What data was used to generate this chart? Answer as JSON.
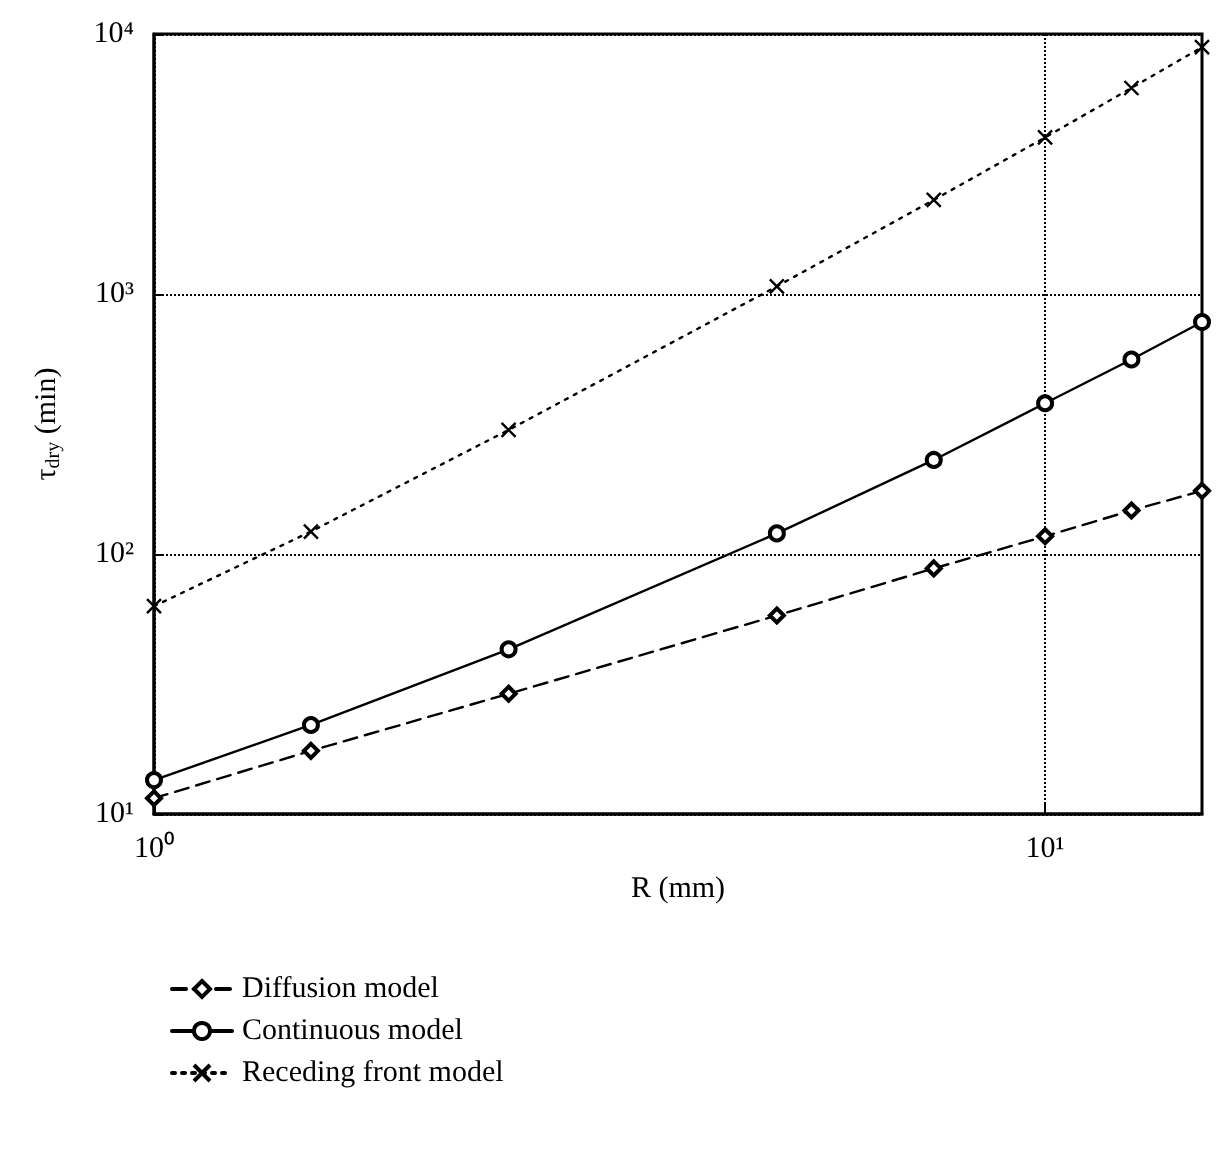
{
  "chart_data": {
    "type": "line",
    "xlabel": "R (mm)",
    "ylabel": "τ$_{dry}$ (min)",
    "log": "xy",
    "grid": true,
    "legend": "bottom",
    "x": [
      1,
      1.5,
      2.5,
      5,
      7.5,
      10,
      12.5,
      15
    ],
    "xlim": [
      1,
      15
    ],
    "xticks": [
      {
        "value": 1,
        "label": "10⁰"
      },
      {
        "value": 10,
        "label": "10¹"
      }
    ],
    "ylim": [
      10,
      10000
    ],
    "yticks": [
      {
        "value": 10,
        "label": "10¹"
      },
      {
        "value": 100,
        "label": "10²"
      },
      {
        "value": 1000,
        "label": "10³"
      },
      {
        "value": 10000,
        "label": "10⁴"
      }
    ],
    "series": [
      {
        "name": "Diffusion model",
        "color": "#000000",
        "marker": "diamond",
        "line_style": "dashed",
        "values": [
          11.5,
          17.5,
          29,
          58,
          88,
          117,
          147,
          175
        ]
      },
      {
        "name": "Continuous model",
        "color": "#000000",
        "marker": "circle",
        "line_style": "solid",
        "values": [
          13.5,
          22,
          43,
          120,
          230,
          380,
          560,
          780
        ]
      },
      {
        "name": "Receding front model",
        "color": "#000000",
        "marker": "cross",
        "line_style": "dotted",
        "values": [
          63,
          122,
          300,
          1070,
          2300,
          4000,
          6200,
          8900
        ]
      }
    ]
  }
}
